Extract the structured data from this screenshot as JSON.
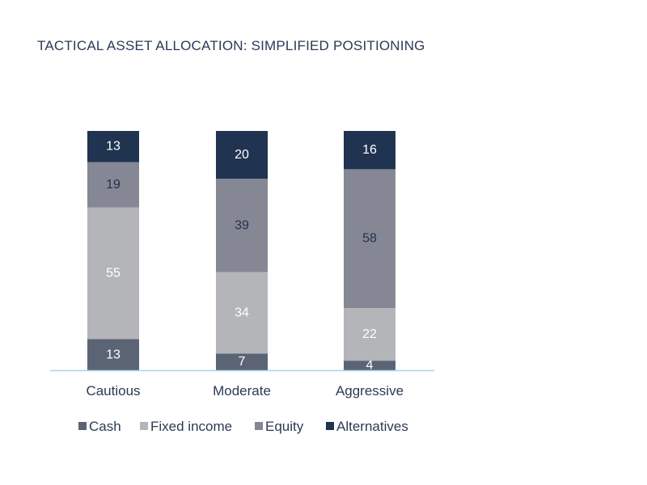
{
  "chart_data": {
    "type": "bar",
    "stacked": true,
    "title": "TACTICAL ASSET ALLOCATION: SIMPLIFIED POSITIONING",
    "categories": [
      "Cautious",
      "Moderate",
      "Aggressive"
    ],
    "series": [
      {
        "name": "Cash",
        "values": [
          13,
          7,
          4
        ],
        "color": "#5b6475",
        "label_color": "#ffffff"
      },
      {
        "name": "Fixed income",
        "values": [
          55,
          34,
          22
        ],
        "color": "#b4b5b9",
        "label_color": "#ffffff"
      },
      {
        "name": "Equity",
        "values": [
          19,
          39,
          58
        ],
        "color": "#858894",
        "label_color": "#1f3050"
      },
      {
        "name": "Alternatives",
        "values": [
          13,
          20,
          16
        ],
        "color": "#203350",
        "label_color": "#ffffff"
      }
    ],
    "ylim": [
      0,
      100
    ],
    "xlabel": "",
    "ylabel": "",
    "legend_position": "bottom",
    "grid": false,
    "axis_color": "#a9d4ea"
  }
}
